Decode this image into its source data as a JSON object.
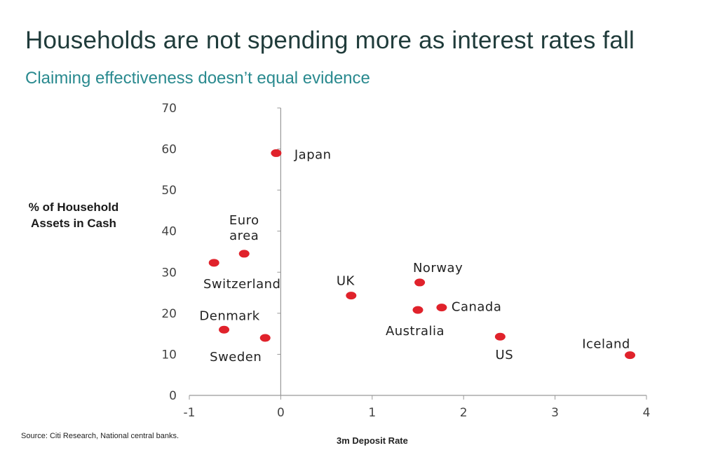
{
  "header": {
    "title": "Households are not spending more as interest rates fall",
    "subtitle": "Claiming effectiveness doesn’t equal evidence"
  },
  "footer": {
    "source": "Source: Citi Research, National central banks."
  },
  "colors": {
    "point": "#e0222b",
    "axis": "#999999",
    "text": "#222222"
  },
  "chart_data": {
    "type": "scatter",
    "title": "Households are not spending more as interest rates fall",
    "subtitle": "Claiming effectiveness doesn’t equal evidence",
    "xlabel": "3m Deposit Rate",
    "ylabel": "% of Household Assets in Cash",
    "xlim": [
      -1,
      4
    ],
    "ylim": [
      0,
      70
    ],
    "xticks": [
      "-1",
      "0",
      "1",
      "2",
      "3",
      "4"
    ],
    "yticks": [
      "0",
      "10",
      "20",
      "30",
      "40",
      "50",
      "60",
      "70"
    ],
    "grid": false,
    "legend": "none",
    "points": [
      {
        "label": "Japan",
        "x": -0.05,
        "y": 59
      },
      {
        "label": "Euro area",
        "x": -0.4,
        "y": 34.5
      },
      {
        "label": "Switzerland",
        "x": -0.73,
        "y": 32.3
      },
      {
        "label": "Denmark",
        "x": -0.62,
        "y": 16
      },
      {
        "label": "Sweden",
        "x": -0.17,
        "y": 14
      },
      {
        "label": "UK",
        "x": 0.77,
        "y": 24.3
      },
      {
        "label": "Norway",
        "x": 1.52,
        "y": 27.5
      },
      {
        "label": "Australia",
        "x": 1.5,
        "y": 20.8
      },
      {
        "label": "Canada",
        "x": 1.76,
        "y": 21.4
      },
      {
        "label": "US",
        "x": 2.4,
        "y": 14.3
      },
      {
        "label": "Iceland",
        "x": 3.82,
        "y": 9.8
      }
    ]
  }
}
